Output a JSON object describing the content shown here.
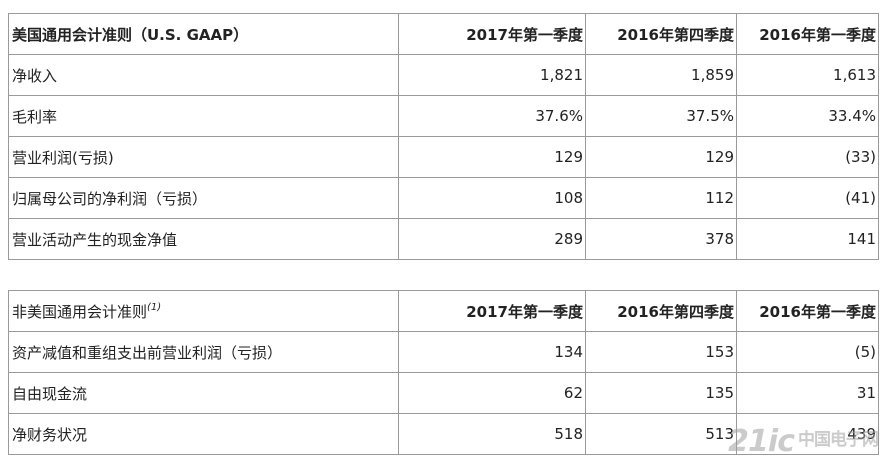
{
  "gaap_table": {
    "header": {
      "label": "美国通用会计准则（U.S. GAAP）",
      "col1": "2017年第一季度",
      "col2": "2016年第四季度",
      "col3": "2016年第一季度"
    },
    "rows": [
      {
        "label": "净收入",
        "v1": "1,821",
        "v2": "1,859",
        "v3": "1,613"
      },
      {
        "label": "毛利率",
        "v1": "37.6%",
        "v2": "37.5%",
        "v3": "33.4%"
      },
      {
        "label": "营业利润(亏损)",
        "v1": "129",
        "v2": "129",
        "v3": "(33)"
      },
      {
        "label": "归属母公司的净利润（亏损）",
        "v1": "108",
        "v2": "112",
        "v3": "(41)"
      },
      {
        "label": "营业活动产生的现金净值",
        "v1": "289",
        "v2": "378",
        "v3": "141"
      }
    ]
  },
  "nongaap_table": {
    "header": {
      "label": "非美国通用会计准则",
      "footnote": "(1)",
      "col1": "2017年第一季度",
      "col2": "2016年第四季度",
      "col3": "2016年第一季度"
    },
    "rows": [
      {
        "label": "资产减值和重组支出前营业利润（亏损）",
        "v1": "134",
        "v2": "153",
        "v3": "(5)"
      },
      {
        "label": "自由现金流",
        "v1": "62",
        "v2": "135",
        "v3": "31"
      },
      {
        "label": "净财务状况",
        "v1": "518",
        "v2": "513",
        "v3": "439"
      }
    ]
  },
  "watermark": {
    "brand": "21ic",
    "cn": "中国电子网"
  }
}
